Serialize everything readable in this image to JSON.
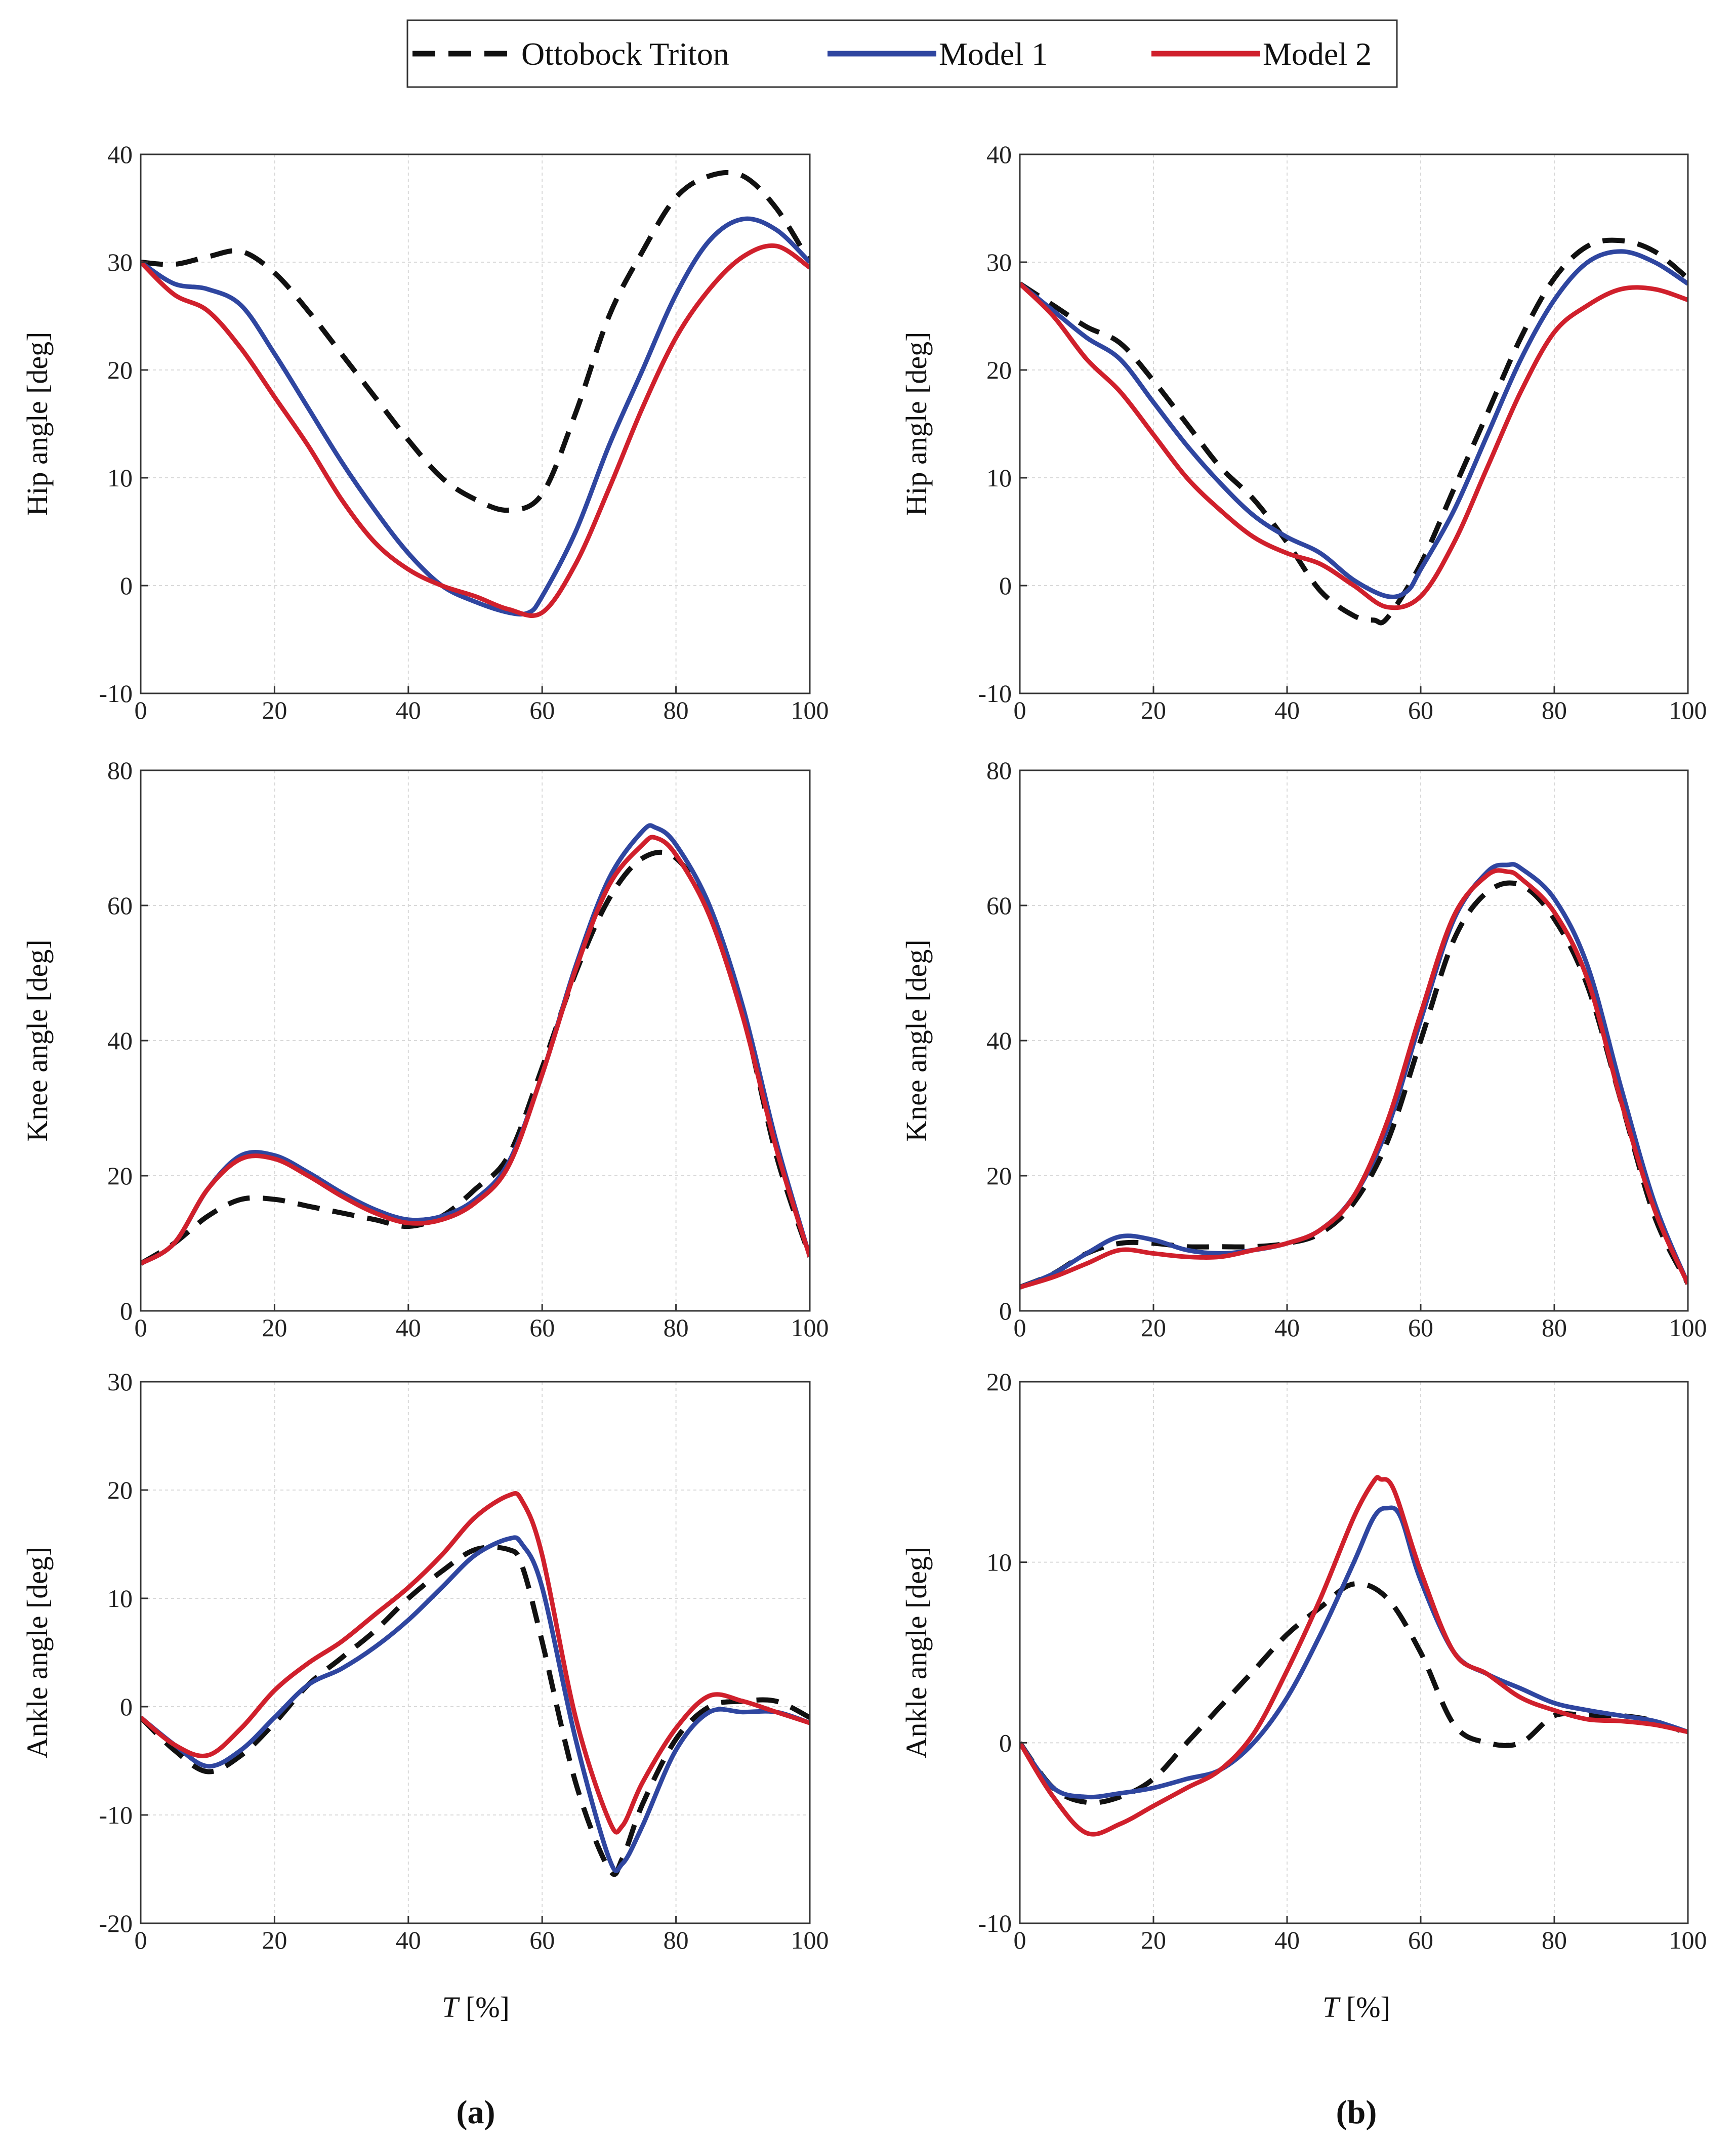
{
  "legend": {
    "items": [
      {
        "label": "Ottobock Triton",
        "color": "#111111",
        "dash": true
      },
      {
        "label": "Model 1",
        "color": "#2f46a0",
        "dash": false
      },
      {
        "label": "Model 2",
        "color": "#d0202c",
        "dash": false
      }
    ]
  },
  "panel_labels": {
    "a": "(a)",
    "b": "(b)"
  },
  "xlabel": {
    "italic": "T",
    "rest": " [%]"
  },
  "chart_data": [
    {
      "id": "hip-a",
      "type": "line",
      "column": "a",
      "row": 0,
      "ylabel": "Hip angle [deg]",
      "xlim": [
        0,
        100
      ],
      "ylim": [
        -10,
        40
      ],
      "xticks": [
        0,
        20,
        40,
        60,
        80,
        100
      ],
      "yticks": [
        -10,
        0,
        10,
        20,
        30,
        40
      ],
      "grid": true,
      "series": [
        {
          "name": "Ottobock Triton",
          "x": [
            0,
            5,
            10,
            15,
            20,
            25,
            30,
            35,
            40,
            45,
            50,
            55,
            60,
            65,
            70,
            75,
            80,
            85,
            90,
            95,
            100
          ],
          "y": [
            30,
            29.8,
            30.5,
            31,
            29,
            25.5,
            21.5,
            17.5,
            13.5,
            10,
            8,
            7,
            8.5,
            16,
            25,
            31,
            36,
            38,
            38,
            35,
            30
          ]
        },
        {
          "name": "Model 1",
          "x": [
            0,
            5,
            10,
            15,
            20,
            25,
            30,
            35,
            40,
            45,
            50,
            55,
            58,
            60,
            65,
            70,
            75,
            80,
            85,
            90,
            95,
            100
          ],
          "y": [
            30,
            28,
            27.5,
            26,
            21.5,
            16.5,
            11.5,
            7,
            3,
            0,
            -1.5,
            -2.5,
            -2.5,
            -1,
            5,
            13,
            20,
            27,
            32,
            34,
            33,
            30
          ]
        },
        {
          "name": "Model 2",
          "x": [
            0,
            5,
            10,
            15,
            20,
            25,
            30,
            35,
            40,
            45,
            50,
            55,
            60,
            65,
            70,
            75,
            80,
            85,
            90,
            95,
            100
          ],
          "y": [
            30,
            27,
            25.5,
            22,
            17.5,
            13,
            8,
            4,
            1.5,
            0,
            -1,
            -2.2,
            -2.5,
            2,
            9,
            16.5,
            23,
            27.5,
            30.5,
            31.5,
            29.5
          ]
        }
      ]
    },
    {
      "id": "hip-b",
      "type": "line",
      "column": "b",
      "row": 0,
      "ylabel": "Hip angle [deg]",
      "xlim": [
        0,
        100
      ],
      "ylim": [
        -10,
        40
      ],
      "xticks": [
        0,
        20,
        40,
        60,
        80,
        100
      ],
      "yticks": [
        -10,
        0,
        10,
        20,
        30,
        40
      ],
      "grid": true,
      "series": [
        {
          "name": "Ottobock Triton",
          "x": [
            0,
            5,
            10,
            15,
            20,
            25,
            30,
            35,
            40,
            45,
            50,
            53,
            55,
            60,
            65,
            70,
            75,
            80,
            85,
            90,
            95,
            100
          ],
          "y": [
            28,
            26,
            24,
            22.5,
            19,
            15,
            11,
            8,
            4,
            -0.5,
            -2.8,
            -3.2,
            -3,
            2,
            9,
            16,
            23,
            28.5,
            31.5,
            32,
            31,
            28.5
          ]
        },
        {
          "name": "Model 1",
          "x": [
            0,
            5,
            10,
            15,
            20,
            25,
            30,
            35,
            40,
            45,
            50,
            55,
            58,
            60,
            65,
            70,
            75,
            80,
            85,
            90,
            95,
            100
          ],
          "y": [
            28,
            25.5,
            23,
            21,
            17,
            13,
            9.5,
            6.5,
            4.5,
            3,
            0.5,
            -1,
            -0.5,
            1.5,
            7,
            14,
            21,
            26.5,
            30,
            31,
            30,
            28
          ]
        },
        {
          "name": "Model 2",
          "x": [
            0,
            5,
            10,
            15,
            20,
            25,
            30,
            35,
            40,
            45,
            50,
            55,
            60,
            65,
            70,
            75,
            80,
            85,
            90,
            95,
            100
          ],
          "y": [
            28,
            25,
            21,
            18,
            14,
            10,
            7,
            4.5,
            3,
            2,
            0,
            -2,
            -1,
            4,
            11,
            18,
            23.5,
            26,
            27.5,
            27.5,
            26.5
          ]
        }
      ]
    },
    {
      "id": "knee-a",
      "type": "line",
      "column": "a",
      "row": 1,
      "ylabel": "Knee angle [deg]",
      "xlim": [
        0,
        100
      ],
      "ylim": [
        0,
        80
      ],
      "xticks": [
        0,
        20,
        40,
        60,
        80,
        100
      ],
      "yticks": [
        0,
        20,
        40,
        60,
        80
      ],
      "grid": true,
      "series": [
        {
          "name": "Ottobock Triton",
          "x": [
            0,
            5,
            10,
            15,
            20,
            25,
            30,
            35,
            40,
            45,
            50,
            55,
            60,
            65,
            70,
            75,
            80,
            85,
            90,
            95,
            100
          ],
          "y": [
            7,
            10,
            14,
            16.5,
            16.5,
            15.5,
            14.5,
            13.5,
            12.5,
            14,
            18,
            23,
            36,
            50,
            61,
            67,
            67,
            59,
            44,
            23,
            8
          ]
        },
        {
          "name": "Model 1",
          "x": [
            0,
            5,
            10,
            15,
            20,
            25,
            30,
            35,
            40,
            45,
            50,
            55,
            60,
            65,
            70,
            75,
            77,
            80,
            85,
            90,
            95,
            100
          ],
          "y": [
            7,
            10,
            18,
            23,
            23,
            20.5,
            17.5,
            15,
            13.5,
            14,
            16.5,
            22,
            35,
            51,
            64,
            71,
            71.5,
            69,
            60,
            45,
            25,
            8
          ]
        },
        {
          "name": "Model 2",
          "x": [
            0,
            5,
            10,
            15,
            20,
            25,
            30,
            35,
            40,
            45,
            50,
            55,
            60,
            65,
            70,
            75,
            77,
            80,
            85,
            90,
            95,
            100
          ],
          "y": [
            7,
            10,
            18,
            22.5,
            22.5,
            20,
            17,
            14.5,
            13,
            13.5,
            16,
            21.5,
            35,
            50.5,
            63,
            69,
            70,
            67.5,
            58.5,
            43.5,
            24,
            8
          ]
        }
      ]
    },
    {
      "id": "knee-b",
      "type": "line",
      "column": "b",
      "row": 1,
      "ylabel": "Knee angle [deg]",
      "xlim": [
        0,
        100
      ],
      "ylim": [
        0,
        80
      ],
      "xticks": [
        0,
        20,
        40,
        60,
        80,
        100
      ],
      "yticks": [
        0,
        20,
        40,
        60,
        80
      ],
      "grid": true,
      "series": [
        {
          "name": "Ottobock Triton",
          "x": [
            0,
            5,
            10,
            15,
            20,
            25,
            30,
            35,
            40,
            45,
            50,
            55,
            60,
            65,
            70,
            75,
            80,
            85,
            90,
            95,
            100
          ],
          "y": [
            3.5,
            5.5,
            8.5,
            10,
            10,
            9.5,
            9.5,
            9.5,
            10,
            11.5,
            16,
            25,
            40,
            55,
            62,
            63,
            58,
            48,
            31,
            14,
            4
          ]
        },
        {
          "name": "Model 1",
          "x": [
            0,
            5,
            10,
            15,
            20,
            25,
            30,
            35,
            40,
            45,
            50,
            55,
            60,
            65,
            70,
            73,
            75,
            80,
            85,
            90,
            95,
            100
          ],
          "y": [
            3.5,
            5.5,
            8.5,
            11,
            10.5,
            9,
            8.5,
            9,
            10,
            12,
            17,
            27,
            43,
            58,
            65,
            66,
            65.5,
            61,
            51,
            33,
            16,
            4
          ]
        },
        {
          "name": "Model 2",
          "x": [
            0,
            5,
            10,
            15,
            20,
            25,
            30,
            35,
            40,
            45,
            50,
            55,
            60,
            65,
            70,
            73,
            75,
            80,
            85,
            90,
            95,
            100
          ],
          "y": [
            3.5,
            5,
            7,
            9,
            8.5,
            8,
            8,
            9,
            10,
            12,
            17,
            28,
            44,
            58.5,
            64.5,
            65,
            64,
            59,
            49,
            31,
            15,
            4
          ]
        }
      ]
    },
    {
      "id": "ankle-a",
      "type": "line",
      "column": "a",
      "row": 2,
      "ylabel": "Ankle angle [deg]",
      "xlim": [
        0,
        100
      ],
      "ylim": [
        -20,
        30
      ],
      "xticks": [
        0,
        20,
        40,
        60,
        80,
        100
      ],
      "yticks": [
        -20,
        -10,
        0,
        10,
        20,
        30
      ],
      "grid": true,
      "series": [
        {
          "name": "Ottobock Triton",
          "x": [
            0,
            5,
            10,
            15,
            20,
            25,
            30,
            35,
            40,
            45,
            50,
            55,
            57,
            60,
            65,
            70,
            72,
            75,
            80,
            85,
            90,
            95,
            100
          ],
          "y": [
            -1,
            -4,
            -6,
            -4.5,
            -1.5,
            2,
            4.5,
            7,
            10,
            12.5,
            14.5,
            14.5,
            13,
            6,
            -7,
            -15,
            -14,
            -9,
            -3,
            0,
            0.5,
            0.5,
            -1
          ]
        },
        {
          "name": "Model 1",
          "x": [
            0,
            5,
            10,
            15,
            20,
            25,
            30,
            35,
            40,
            45,
            50,
            55,
            57,
            60,
            65,
            70,
            72,
            75,
            80,
            85,
            90,
            95,
            100
          ],
          "y": [
            -1,
            -3.5,
            -5.5,
            -4,
            -1,
            2,
            3.5,
            5.5,
            8,
            11,
            14,
            15.5,
            15,
            11,
            -3,
            -14,
            -14.5,
            -11,
            -4,
            -0.5,
            -0.5,
            -0.5,
            -1.5
          ]
        },
        {
          "name": "Model 2",
          "x": [
            0,
            5,
            10,
            15,
            20,
            25,
            30,
            35,
            40,
            45,
            50,
            55,
            57,
            60,
            65,
            70,
            72,
            75,
            80,
            85,
            90,
            95,
            100
          ],
          "y": [
            -1,
            -3.5,
            -4.5,
            -2,
            1.5,
            4,
            6,
            8.5,
            11,
            14,
            17.5,
            19.5,
            19,
            14,
            -1,
            -10.5,
            -11,
            -7,
            -2,
            1,
            0.5,
            -0.5,
            -1.5
          ]
        }
      ]
    },
    {
      "id": "ankle-b",
      "type": "line",
      "column": "b",
      "row": 2,
      "ylabel": "Ankle angle [deg]",
      "xlim": [
        0,
        100
      ],
      "ylim": [
        -10,
        20
      ],
      "xticks": [
        0,
        20,
        40,
        60,
        80,
        100
      ],
      "yticks": [
        -10,
        0,
        10,
        20
      ],
      "grid": true,
      "series": [
        {
          "name": "Ottobock Triton",
          "x": [
            0,
            5,
            10,
            15,
            20,
            25,
            30,
            35,
            40,
            45,
            50,
            55,
            60,
            65,
            70,
            75,
            80,
            85,
            90,
            95,
            100
          ],
          "y": [
            0,
            -2.5,
            -3.3,
            -3,
            -2,
            0,
            2,
            4,
            6,
            7.5,
            8.8,
            8,
            5,
            1,
            0,
            0,
            1.5,
            1.5,
            1.5,
            1.2,
            0.5
          ]
        },
        {
          "name": "Model 1",
          "x": [
            0,
            5,
            10,
            15,
            20,
            25,
            30,
            35,
            40,
            45,
            50,
            53,
            55,
            57,
            60,
            65,
            70,
            75,
            80,
            85,
            90,
            95,
            100
          ],
          "y": [
            0,
            -2.5,
            -3,
            -2.8,
            -2.5,
            -2,
            -1.5,
            0,
            2.5,
            6,
            10,
            12.5,
            13,
            12.5,
            9,
            5,
            3.8,
            3,
            2.2,
            1.8,
            1.5,
            1.2,
            0.6
          ]
        },
        {
          "name": "Model 2",
          "x": [
            0,
            5,
            10,
            15,
            20,
            25,
            30,
            35,
            40,
            45,
            50,
            53,
            54,
            56,
            60,
            65,
            70,
            75,
            80,
            85,
            90,
            95,
            100
          ],
          "y": [
            0,
            -3,
            -5,
            -4.5,
            -3.5,
            -2.5,
            -1.5,
            0.5,
            4,
            8,
            12.5,
            14.5,
            14.6,
            14,
            9.5,
            5,
            3.8,
            2.5,
            1.8,
            1.3,
            1.2,
            1,
            0.6
          ]
        }
      ]
    }
  ]
}
